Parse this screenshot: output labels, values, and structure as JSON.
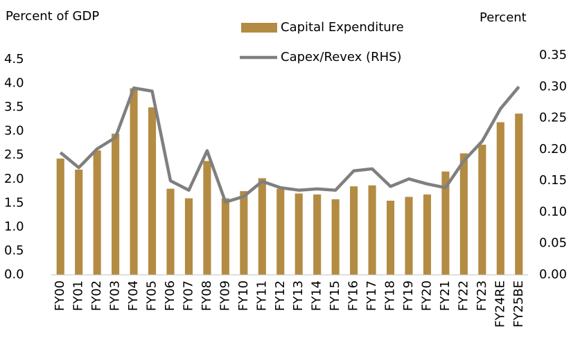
{
  "chart_data": {
    "type": "bar_line",
    "y_label": "Percent of GDP",
    "y2_label": "Percent",
    "categories": [
      "FY00",
      "FY01",
      "FY02",
      "FY03",
      "FY04",
      "FY05",
      "FY06",
      "FY07",
      "FY08",
      "FY09",
      "FY10",
      "FY11",
      "FY12",
      "FY13",
      "FY14",
      "FY15",
      "FY16",
      "FY17",
      "FY18",
      "FY19",
      "FY20",
      "FY21",
      "FY22",
      "FY23",
      "FY24RE",
      "FY25BE"
    ],
    "series": [
      {
        "name": "Capital Expenditure",
        "type": "bar",
        "color": "#b38b43",
        "values": [
          2.43,
          2.2,
          2.6,
          2.95,
          3.9,
          3.5,
          1.8,
          1.6,
          2.38,
          1.6,
          1.75,
          2.02,
          1.8,
          1.7,
          1.68,
          1.58,
          1.85,
          1.87,
          1.55,
          1.63,
          1.68,
          2.16,
          2.54,
          2.72,
          3.19,
          3.37
        ]
      },
      {
        "name": "Capex/Revex (RHS)",
        "type": "line",
        "axis": "y2",
        "color": "#7f7f7f",
        "values": [
          0.195,
          0.171,
          0.201,
          0.219,
          0.298,
          0.293,
          0.15,
          0.135,
          0.198,
          0.116,
          0.125,
          0.149,
          0.139,
          0.135,
          0.137,
          0.135,
          0.166,
          0.169,
          0.141,
          0.153,
          0.145,
          0.139,
          0.182,
          0.213,
          0.265,
          0.3
        ]
      }
    ],
    "ylim": [
      0,
      4.5
    ],
    "yticks": [
      {
        "value": 0,
        "label": "0.0"
      },
      0.5,
      {
        "value": 1,
        "label": "1.0"
      },
      1.5,
      {
        "value": 2,
        "label": "2.0"
      },
      2.5,
      {
        "value": 3,
        "label": "3.0"
      },
      3.5,
      {
        "value": 4,
        "label": "4.0"
      },
      4.5
    ],
    "y2lim": [
      0,
      0.35
    ],
    "y2ticks": [
      {
        "value": 0,
        "label": "0.00"
      },
      0.05,
      {
        "value": 0.1,
        "label": "0.10"
      },
      0.15,
      {
        "value": 0.2,
        "label": "0.20"
      },
      0.25,
      {
        "value": 0.3,
        "label": "0.30"
      },
      0.35
    ],
    "grid": false,
    "legend": "top"
  }
}
